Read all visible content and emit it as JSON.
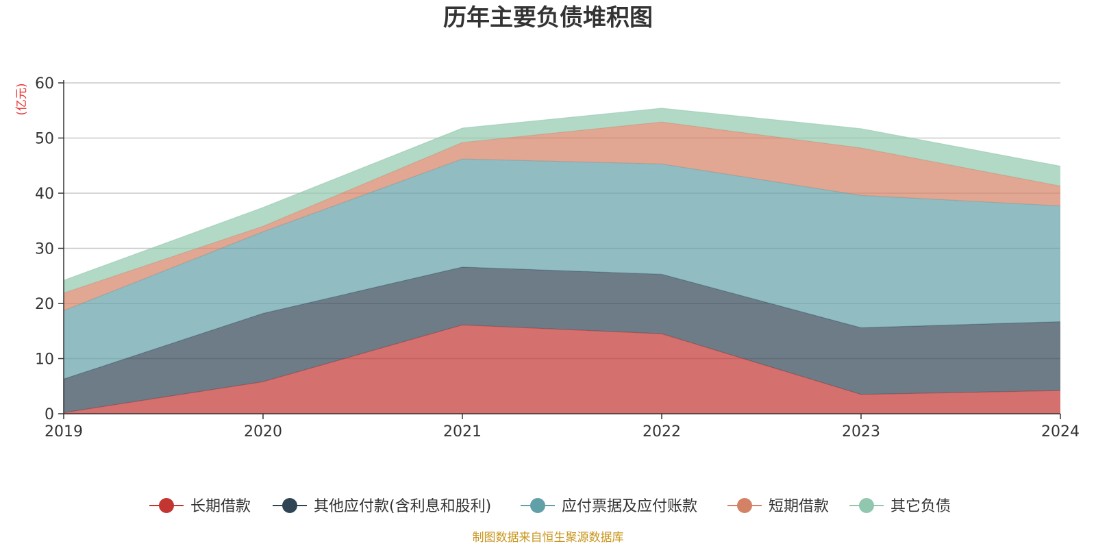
{
  "chart_data": {
    "type": "area",
    "stacked": true,
    "title": "历年主要负债堆积图",
    "unit_label": "(亿元)",
    "x": [
      "2019",
      "2020",
      "2021",
      "2022",
      "2023",
      "2024"
    ],
    "ylim": [
      0,
      60
    ],
    "yticks": [
      "0",
      "10",
      "20",
      "30",
      "40",
      "50",
      "60"
    ],
    "grid": true,
    "legend_position": "bottom",
    "series": [
      {
        "name": "长期借款",
        "color": "#c23531",
        "values": [
          0.2,
          5.8,
          16.1,
          14.5,
          3.5,
          4.2
        ]
      },
      {
        "name": "其他应付款(含利息和股利)",
        "color": "#2f4554",
        "values": [
          6.1,
          12.4,
          10.5,
          10.8,
          12.1,
          12.5
        ]
      },
      {
        "name": "应付票据及应付账款",
        "color": "#61a0a8",
        "values": [
          12.4,
          14.8,
          19.6,
          20.0,
          24.0,
          21.0
        ]
      },
      {
        "name": "短期借款",
        "color": "#d48265",
        "values": [
          3.2,
          1.0,
          3.0,
          7.6,
          8.6,
          3.6
        ]
      },
      {
        "name": "其它负债",
        "color": "#91c7ae",
        "values": [
          2.3,
          3.4,
          2.6,
          2.5,
          3.5,
          3.6
        ]
      }
    ],
    "source": "制图数据来自恒生聚源数据库"
  }
}
